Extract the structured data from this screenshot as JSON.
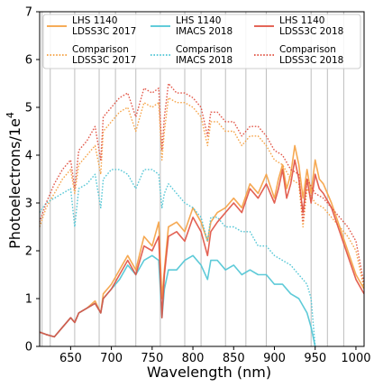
{
  "chart_data": {
    "type": "line",
    "xlabel": "Wavelength (nm)",
    "ylabel": "Photoelectrons/1e",
    "ylabel_superscript": "4",
    "xlim": [
      612,
      1010
    ],
    "ylim": [
      0,
      7
    ],
    "x_ticks": [
      650,
      700,
      750,
      800,
      850,
      900,
      950,
      1000
    ],
    "y_ticks": [
      0,
      1,
      2,
      3,
      4,
      5,
      6,
      7
    ],
    "grid": "vertical lines at regular wavelength intervals",
    "vgrid_x": [
      615,
      625,
      655,
      685,
      705,
      730,
      760,
      790,
      810,
      840,
      865,
      890,
      945,
      965,
      985
    ],
    "legend_position": "top",
    "colors": {
      "ldss3c_2017": "#f5a040",
      "imacs_2018": "#4cc4d4",
      "ldss3c_2018": "#e05040"
    },
    "series": [
      {
        "name_lines": [
          "LHS 1140",
          "LDSS3C 2017"
        ],
        "color": "#f5a040",
        "style": "solid",
        "x": [
          612,
          620,
          630,
          640,
          650,
          655,
          660,
          670,
          680,
          687,
          690,
          700,
          710,
          720,
          730,
          740,
          750,
          758,
          762,
          765,
          770,
          780,
          790,
          800,
          810,
          818,
          822,
          830,
          840,
          850,
          860,
          870,
          880,
          890,
          900,
          905,
          910,
          915,
          920,
          925,
          930,
          935,
          940,
          945,
          950,
          955,
          960,
          970,
          980,
          990,
          1000,
          1010
        ],
        "y": [
          0.3,
          0.25,
          0.2,
          0.4,
          0.6,
          0.5,
          0.7,
          0.8,
          0.95,
          0.7,
          1.1,
          1.3,
          1.6,
          1.9,
          1.6,
          2.3,
          2.1,
          2.6,
          1.0,
          1.6,
          2.5,
          2.6,
          2.4,
          2.9,
          2.6,
          2.2,
          2.6,
          2.8,
          2.9,
          3.1,
          2.9,
          3.4,
          3.2,
          3.6,
          3.1,
          3.5,
          3.8,
          3.3,
          3.6,
          4.2,
          3.8,
          3.1,
          3.7,
          3.2,
          3.9,
          3.5,
          3.4,
          3.0,
          2.5,
          2.0,
          1.5,
          1.2
        ]
      },
      {
        "name_lines": [
          "Comparison",
          "LDSS3C 2017"
        ],
        "color": "#f5a040",
        "style": "dotted",
        "x": [
          612,
          620,
          630,
          640,
          650,
          655,
          660,
          670,
          680,
          687,
          690,
          700,
          710,
          720,
          730,
          740,
          750,
          758,
          762,
          765,
          770,
          780,
          790,
          800,
          810,
          818,
          822,
          830,
          840,
          850,
          860,
          870,
          880,
          890,
          900,
          910,
          920,
          930,
          935,
          940,
          950,
          960,
          970,
          980,
          990,
          1000,
          1010
        ],
        "y": [
          2.5,
          2.9,
          3.2,
          3.5,
          3.7,
          3.2,
          3.8,
          4.0,
          4.2,
          3.6,
          4.5,
          4.7,
          4.9,
          5.0,
          4.5,
          5.1,
          5.0,
          5.1,
          3.9,
          4.5,
          5.2,
          5.1,
          5.1,
          5.0,
          4.8,
          4.2,
          4.7,
          4.7,
          4.5,
          4.5,
          4.2,
          4.4,
          4.4,
          4.2,
          3.9,
          3.8,
          3.5,
          3.4,
          2.5,
          3.3,
          3.0,
          2.9,
          2.7,
          2.5,
          2.3,
          2.0,
          1.2
        ]
      },
      {
        "name_lines": [
          "LHS 1140",
          "IMACS 2018"
        ],
        "color": "#4cc4d4",
        "style": "solid",
        "x": [
          612,
          620,
          630,
          640,
          650,
          655,
          660,
          670,
          680,
          687,
          690,
          700,
          710,
          720,
          730,
          740,
          750,
          758,
          762,
          765,
          770,
          780,
          790,
          800,
          810,
          818,
          822,
          830,
          840,
          850,
          860,
          870,
          880,
          890,
          900,
          910,
          920,
          930,
          940,
          945,
          950
        ],
        "y": [
          0.3,
          0.25,
          0.2,
          0.4,
          0.6,
          0.5,
          0.7,
          0.8,
          0.9,
          0.7,
          1.0,
          1.2,
          1.4,
          1.7,
          1.5,
          1.8,
          1.9,
          1.8,
          0.6,
          1.2,
          1.6,
          1.6,
          1.8,
          1.9,
          1.7,
          1.4,
          1.8,
          1.8,
          1.6,
          1.7,
          1.5,
          1.6,
          1.5,
          1.5,
          1.3,
          1.3,
          1.1,
          1.0,
          0.7,
          0.4,
          0.0
        ]
      },
      {
        "name_lines": [
          "Comparison",
          "IMACS 2018"
        ],
        "color": "#4cc4d4",
        "style": "dotted",
        "x": [
          612,
          620,
          630,
          640,
          650,
          655,
          660,
          670,
          680,
          687,
          690,
          700,
          710,
          720,
          730,
          740,
          750,
          758,
          762,
          765,
          770,
          780,
          790,
          800,
          810,
          818,
          822,
          830,
          840,
          850,
          860,
          870,
          880,
          890,
          900,
          910,
          920,
          930,
          940,
          945,
          950
        ],
        "y": [
          2.8,
          3.0,
          3.1,
          3.2,
          3.3,
          2.5,
          3.3,
          3.4,
          3.6,
          2.9,
          3.5,
          3.7,
          3.7,
          3.6,
          3.3,
          3.7,
          3.7,
          3.6,
          2.9,
          3.2,
          3.4,
          3.2,
          3.0,
          2.9,
          2.7,
          2.2,
          2.7,
          2.7,
          2.5,
          2.5,
          2.4,
          2.4,
          2.1,
          2.1,
          1.9,
          1.8,
          1.7,
          1.5,
          1.3,
          1.0,
          0.0
        ]
      },
      {
        "name_lines": [
          "LHS 1140",
          "LDSS3C 2018"
        ],
        "color": "#e05040",
        "style": "solid",
        "x": [
          612,
          620,
          630,
          640,
          650,
          655,
          660,
          670,
          680,
          687,
          690,
          700,
          710,
          720,
          730,
          740,
          750,
          758,
          762,
          765,
          770,
          780,
          790,
          800,
          810,
          818,
          822,
          830,
          840,
          850,
          860,
          870,
          880,
          890,
          900,
          905,
          910,
          915,
          920,
          925,
          930,
          935,
          940,
          945,
          950,
          955,
          960,
          970,
          980,
          990,
          1000,
          1010
        ],
        "y": [
          0.3,
          0.25,
          0.2,
          0.4,
          0.6,
          0.5,
          0.7,
          0.8,
          0.9,
          0.7,
          1.0,
          1.2,
          1.5,
          1.8,
          1.5,
          2.1,
          2.0,
          2.3,
          0.6,
          1.5,
          2.3,
          2.4,
          2.2,
          2.7,
          2.4,
          1.9,
          2.4,
          2.6,
          2.8,
          3.0,
          2.8,
          3.3,
          3.1,
          3.4,
          3.0,
          3.3,
          3.7,
          3.1,
          3.4,
          3.9,
          3.5,
          2.8,
          3.5,
          3.0,
          3.6,
          3.3,
          3.2,
          2.9,
          2.4,
          1.9,
          1.4,
          1.1
        ]
      },
      {
        "name_lines": [
          "Comparison",
          "LDSS3C 2018"
        ],
        "color": "#e05040",
        "style": "dotted",
        "x": [
          612,
          620,
          630,
          640,
          650,
          655,
          660,
          670,
          680,
          687,
          690,
          700,
          710,
          720,
          730,
          740,
          750,
          758,
          762,
          765,
          770,
          780,
          790,
          800,
          810,
          818,
          822,
          830,
          840,
          850,
          860,
          870,
          880,
          890,
          900,
          910,
          920,
          930,
          935,
          940,
          950,
          960,
          970,
          980,
          990,
          1000,
          1010
        ],
        "y": [
          2.6,
          3.0,
          3.4,
          3.7,
          3.9,
          3.3,
          4.1,
          4.3,
          4.6,
          3.9,
          4.8,
          5.0,
          5.2,
          5.3,
          4.8,
          5.4,
          5.3,
          5.4,
          4.1,
          4.8,
          5.5,
          5.3,
          5.3,
          5.2,
          5.0,
          4.4,
          4.9,
          4.9,
          4.7,
          4.7,
          4.4,
          4.6,
          4.6,
          4.4,
          4.1,
          4.0,
          3.7,
          3.6,
          2.6,
          3.5,
          3.2,
          3.1,
          2.9,
          2.7,
          2.5,
          2.2,
          1.3
        ]
      }
    ]
  }
}
